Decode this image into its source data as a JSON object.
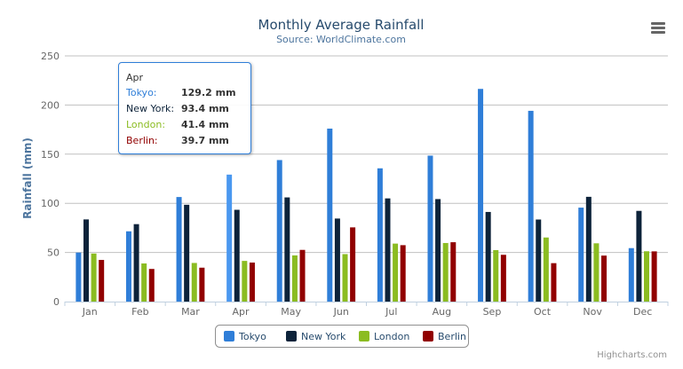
{
  "chart_data": {
    "type": "bar",
    "title": "Monthly Average Rainfall",
    "subtitle": "Source: WorldClimate.com",
    "xlabel": "",
    "ylabel": "Rainfall (mm)",
    "ylim": [
      0,
      250
    ],
    "yticks": [
      0,
      50,
      100,
      150,
      200,
      250
    ],
    "grid": true,
    "legend": "bottom-center",
    "categories": [
      "Jan",
      "Feb",
      "Mar",
      "Apr",
      "May",
      "Jun",
      "Jul",
      "Aug",
      "Sep",
      "Oct",
      "Nov",
      "Dec"
    ],
    "series": [
      {
        "name": "Tokyo",
        "color": "#2f7ed8",
        "values": [
          49.9,
          71.5,
          106.4,
          129.2,
          144.0,
          176.0,
          135.6,
          148.5,
          216.4,
          194.1,
          95.6,
          54.4
        ]
      },
      {
        "name": "New York",
        "color": "#0d233a",
        "values": [
          83.6,
          78.8,
          98.5,
          93.4,
          106.0,
          84.5,
          105.0,
          104.3,
          91.2,
          83.5,
          106.6,
          92.3
        ]
      },
      {
        "name": "London",
        "color": "#8bbc21",
        "values": [
          48.9,
          38.8,
          39.3,
          41.4,
          47.0,
          48.3,
          59.0,
          59.6,
          52.4,
          65.2,
          59.3,
          51.2
        ]
      },
      {
        "name": "Berlin",
        "color": "#910000",
        "values": [
          42.4,
          33.2,
          34.5,
          39.7,
          52.6,
          75.5,
          57.4,
          60.4,
          47.6,
          39.1,
          46.8,
          51.1
        ]
      }
    ]
  },
  "tooltip": {
    "header": "Apr",
    "rows": [
      {
        "name": "Tokyo:",
        "value": "129.2 mm",
        "color": "#2f7ed8"
      },
      {
        "name": "New York:",
        "value": "93.4 mm",
        "color": "#0d233a"
      },
      {
        "name": "London:",
        "value": "41.4 mm",
        "color": "#8bbc21"
      },
      {
        "name": "Berlin:",
        "value": "39.7 mm",
        "color": "#910000"
      }
    ]
  },
  "credits": "Highcharts.com",
  "menu_icon": "hamburger-menu-icon"
}
